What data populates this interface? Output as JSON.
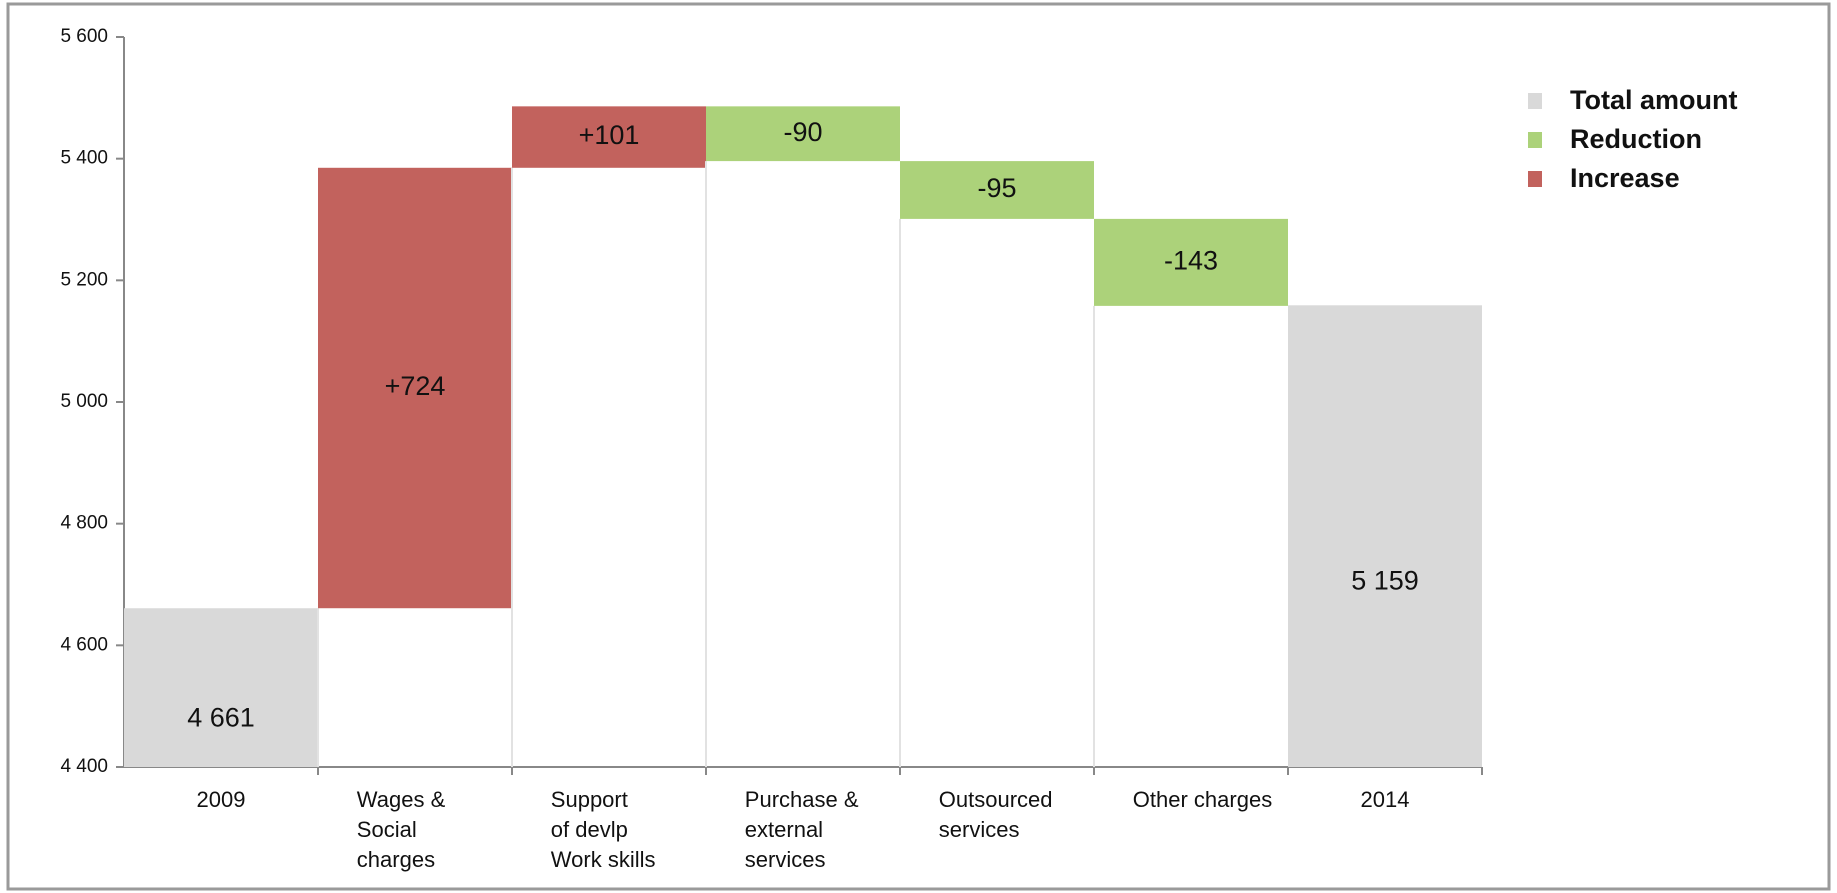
{
  "chart_data": {
    "type": "waterfall",
    "categories": [
      [
        "2009"
      ],
      [
        "Wages &",
        "Social",
        "charges"
      ],
      [
        "Support",
        "of devlp",
        "Work skills"
      ],
      [
        "Purchase &",
        "external",
        "services"
      ],
      [
        "Outsourced",
        "services"
      ],
      [
        "Other charges"
      ],
      [
        "2014"
      ]
    ],
    "values": [
      4661,
      724,
      101,
      -90,
      -95,
      -143,
      5159
    ],
    "value_labels": [
      "4 661",
      "+724",
      "+101",
      "-90",
      "-95",
      "-143",
      "5 159"
    ],
    "legend": [
      {
        "name": "Total amount",
        "color": "#d9d9d9"
      },
      {
        "name": "Reduction",
        "color": "#acd27a"
      },
      {
        "name": "Increase",
        "color": "#c2625d"
      }
    ],
    "ylim": [
      4400,
      5600
    ],
    "yticks": [
      {
        "value": 4400,
        "label": "4 400"
      },
      {
        "value": 4600,
        "label": "4 600"
      },
      {
        "value": 4800,
        "label": "4 800"
      },
      {
        "value": 5000,
        "label": "5 000"
      },
      {
        "value": 5200,
        "label": "5 200"
      },
      {
        "value": 5400,
        "label": "5 400"
      },
      {
        "value": 5600,
        "label": "5 600"
      }
    ]
  }
}
